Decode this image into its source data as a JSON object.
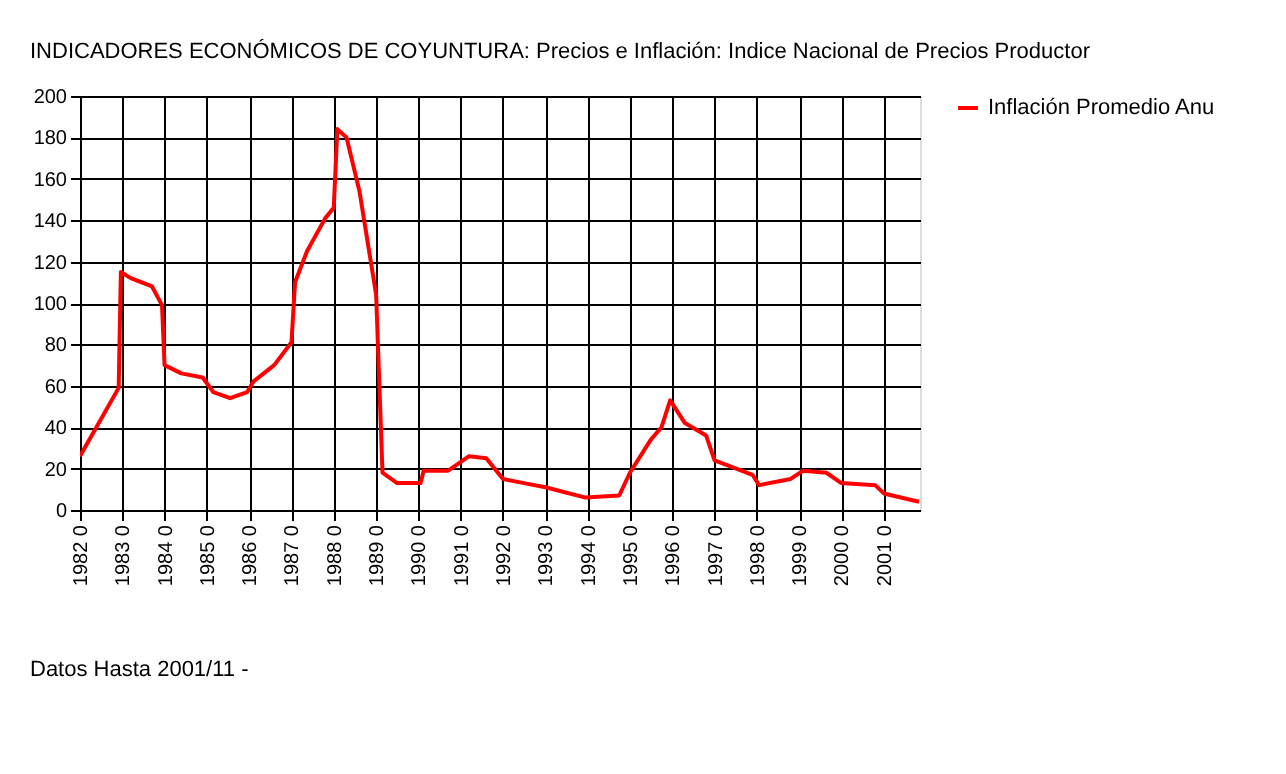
{
  "chart_data": {
    "type": "line",
    "title": "INDICADORES ECONÓMICOS DE COYUNTURA: Precios e Inflación: Indice Nacional de Precios Productor",
    "annotations": [
      "Datos Hasta 2001/11 -"
    ],
    "series": [
      {
        "name": "Inflación Promedio Anu",
        "color": "#ff0000",
        "x": [
          "1982-01-01",
          "1982-12-01",
          "1982-12-20",
          "1983-03-15",
          "1983-09-15",
          "1983-12-10",
          "1984-01-01",
          "1984-05-25",
          "1984-11-25",
          "1985-02-25",
          "1985-07-20",
          "1985-12-15",
          "1986-02-05",
          "1986-08-05",
          "1987-01-01",
          "1987-02-01",
          "1987-05-15",
          "1987-10-20",
          "1988-01-01",
          "1988-02-01",
          "1988-04-20",
          "1988-08-10",
          "1989-01-01",
          "1989-02-25",
          "1989-07-01",
          "1990-01-20",
          "1990-02-15",
          "1990-09-15",
          "1991-03-15",
          "1991-08-10",
          "1992-01-01",
          "1992-07-01",
          "1993-01-01",
          "1993-12-15",
          "1994-10-01",
          "1995-01-01",
          "1995-07-01",
          "1995-10-01",
          "1995-12-15",
          "1996-04-20",
          "1996-10-20",
          "1997-01-01",
          "1997-11-25",
          "1998-01-20",
          "1998-10-20",
          "1999-02-05",
          "1999-08-25",
          "2000-01-01",
          "2000-10-20",
          "2001-01-01",
          "2001-11-01"
        ],
        "values": [
          26,
          59,
          115,
          112,
          108,
          99,
          70,
          66,
          64,
          57,
          54,
          57,
          62,
          70,
          81,
          110,
          125,
          141,
          146,
          184,
          180,
          154,
          104,
          18,
          13,
          13,
          19,
          19,
          26,
          25,
          15,
          13,
          11,
          6,
          7,
          18,
          34,
          40,
          53,
          42,
          36,
          24,
          17,
          12,
          15,
          19,
          18,
          13,
          12,
          8,
          4
        ]
      }
    ],
    "xlim": [
      "1982-01-01",
      "2001-11-10"
    ],
    "xticks": [
      {
        "value": "1982-01-01",
        "label": "1982 0"
      },
      {
        "value": "1983-01-01",
        "label": "1983 0"
      },
      {
        "value": "1984-01-01",
        "label": "1984 0"
      },
      {
        "value": "1985-01-01",
        "label": "1985 0"
      },
      {
        "value": "1986-01-01",
        "label": "1986 0"
      },
      {
        "value": "1987-01-01",
        "label": "1987 0"
      },
      {
        "value": "1988-01-01",
        "label": "1988 0"
      },
      {
        "value": "1989-01-01",
        "label": "1989 0"
      },
      {
        "value": "1990-01-01",
        "label": "1990 0"
      },
      {
        "value": "1991-01-01",
        "label": "1991 0"
      },
      {
        "value": "1992-01-01",
        "label": "1992 0"
      },
      {
        "value": "1993-01-01",
        "label": "1993 0"
      },
      {
        "value": "1994-01-01",
        "label": "1994 0"
      },
      {
        "value": "1995-01-01",
        "label": "1995 0"
      },
      {
        "value": "1996-01-01",
        "label": "1996 0"
      },
      {
        "value": "1997-01-01",
        "label": "1997 0"
      },
      {
        "value": "1998-01-01",
        "label": "1998 0"
      },
      {
        "value": "1999-01-01",
        "label": "1999 0"
      },
      {
        "value": "2000-01-01",
        "label": "2000 0"
      },
      {
        "value": "2001-01-01",
        "label": "2001 0"
      }
    ],
    "ylim": [
      0,
      200
    ],
    "yticks": [
      0,
      20,
      40,
      60,
      80,
      100,
      120,
      140,
      160,
      180,
      200
    ],
    "grid": true,
    "legend": "right",
    "marker": "none",
    "line_style": "solid"
  }
}
